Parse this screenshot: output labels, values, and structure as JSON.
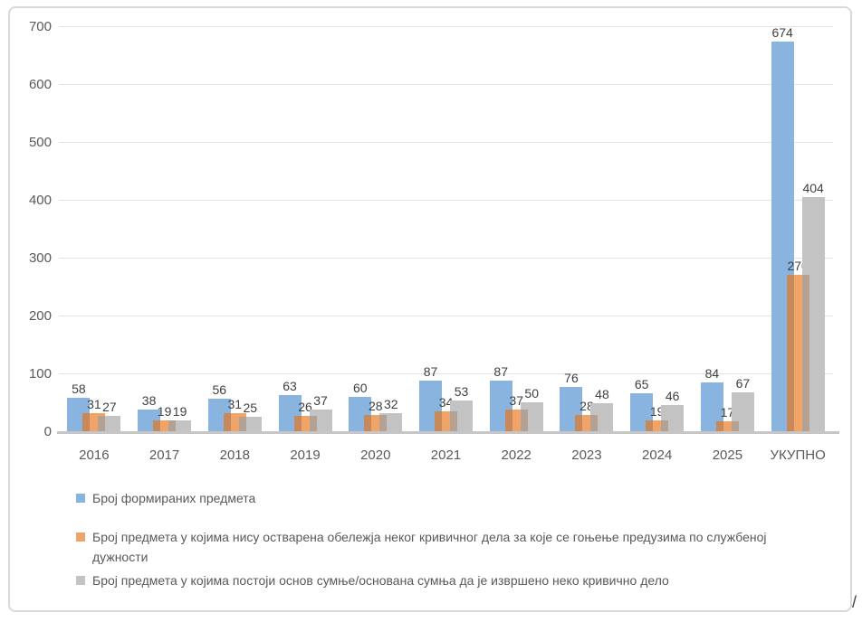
{
  "chart_data": {
    "type": "bar",
    "title": "",
    "xlabel": "",
    "ylabel": "",
    "categories": [
      "2016",
      "2017",
      "2018",
      "2019",
      "2020",
      "2021",
      "2022",
      "2023",
      "2024",
      "2025",
      "УКУПНО"
    ],
    "series": [
      {
        "name": "Број формираних предмета",
        "color": "#8ab4e0",
        "overlap_color": null,
        "values": [
          58,
          38,
          56,
          63,
          60,
          87,
          87,
          76,
          65,
          84,
          674
        ]
      },
      {
        "name": "Број предмета у којима нису остварена обележја неког кривичног дела за које се гоњење предузима по службеној дужности",
        "color": "#f0a468",
        "overlap_color": "#c8895a",
        "values": [
          31,
          19,
          31,
          26,
          28,
          34,
          37,
          28,
          19,
          17,
          270
        ]
      },
      {
        "name": "Број предмета у којима постоји основ сумње/основана сумња да је извршено неко кривично дело",
        "color": "#c3c3c3",
        "overlap_color": "#b3a193",
        "values": [
          27,
          19,
          25,
          37,
          32,
          53,
          50,
          48,
          46,
          67,
          404
        ]
      }
    ],
    "ylim": [
      0,
      700
    ],
    "ytick_step": 100,
    "yticks": [
      0,
      100,
      200,
      300,
      400,
      500,
      600,
      700
    ],
    "grid": true,
    "legend_position": "bottom",
    "data_labels": true,
    "colors": {
      "gridline": "#e2e2e2",
      "axis_line": "#c6c6c6",
      "axis_text": "#595959",
      "data_label_text": "#404040",
      "frame_border": "#d9d9d9"
    }
  },
  "annotations": {
    "corner_mark": "/"
  }
}
